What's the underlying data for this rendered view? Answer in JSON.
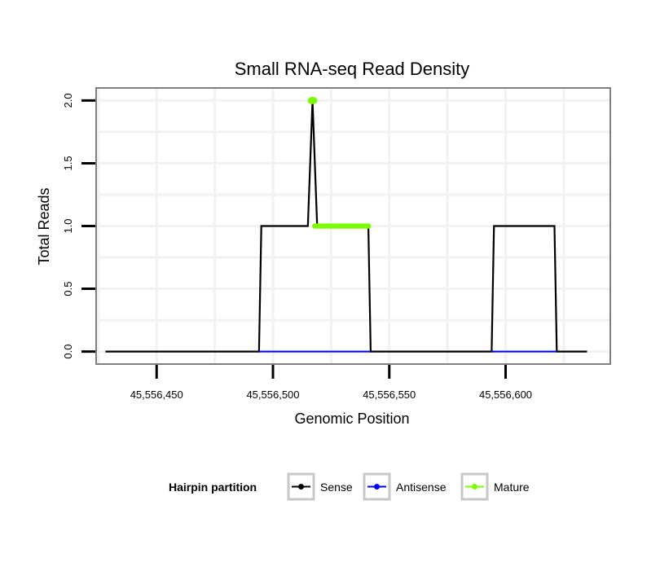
{
  "chart_data": {
    "type": "line",
    "title": "Small RNA-seq Read Density",
    "xlabel": "Genomic Position",
    "ylabel": "Total Reads",
    "xlim": [
      45556424,
      45556645
    ],
    "ylim": [
      -0.1,
      2.1
    ],
    "x_ticks": [
      45556450,
      45556500,
      45556550,
      45556600
    ],
    "x_tick_labels": [
      "45,556,450",
      "45,556,500",
      "45,556,550",
      "45,556,600"
    ],
    "y_ticks": [
      0.0,
      0.5,
      1.0,
      1.5,
      2.0
    ],
    "y_tick_labels": [
      "0.0",
      "0.5",
      "1.0",
      "1.5",
      "2.0"
    ],
    "grid": true,
    "legend": {
      "title": "Hairpin partition",
      "placement": "bottom",
      "entries": [
        "Sense",
        "Antisense",
        "Mature"
      ]
    },
    "series": [
      {
        "name": "Sense",
        "color": "#000000",
        "x": [
          45556428,
          45556494,
          45556495,
          45556515,
          45556517,
          45556519,
          45556541,
          45556542,
          45556594,
          45556595,
          45556621,
          45556622,
          45556635
        ],
        "y": [
          0,
          0,
          1,
          1,
          2,
          1,
          1,
          0,
          0,
          1,
          1,
          0,
          0
        ]
      },
      {
        "name": "Antisense",
        "color": "#0000ff",
        "x": [
          45556494,
          45556542,
          45556594,
          45556622
        ],
        "y": [
          0,
          0,
          0,
          0
        ],
        "segments": [
          [
            45556494,
            45556542
          ],
          [
            45556594,
            45556622
          ]
        ]
      },
      {
        "name": "Mature",
        "color": "#7cfc00",
        "points": [
          [
            45556517,
            2
          ],
          [
            45556518,
            1
          ],
          [
            45556519,
            1
          ],
          [
            45556520,
            1
          ],
          [
            45556521,
            1
          ],
          [
            45556522,
            1
          ],
          [
            45556523,
            1
          ],
          [
            45556524,
            1
          ],
          [
            45556525,
            1
          ],
          [
            45556526,
            1
          ],
          [
            45556527,
            1
          ],
          [
            45556528,
            1
          ],
          [
            45556529,
            1
          ],
          [
            45556530,
            1
          ],
          [
            45556531,
            1
          ],
          [
            45556532,
            1
          ],
          [
            45556533,
            1
          ],
          [
            45556534,
            1
          ],
          [
            45556535,
            1
          ],
          [
            45556536,
            1
          ],
          [
            45556537,
            1
          ],
          [
            45556538,
            1
          ],
          [
            45556539,
            1
          ],
          [
            45556540,
            1
          ],
          [
            45556541,
            1
          ]
        ]
      }
    ]
  }
}
